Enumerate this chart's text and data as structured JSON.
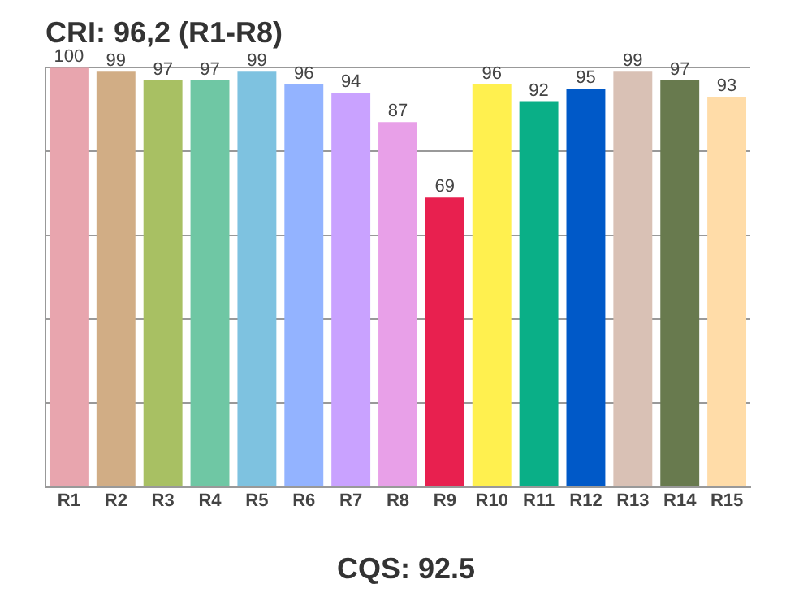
{
  "chart_data": {
    "type": "bar",
    "title": "CRI: 96,2 (R1-R8)",
    "categories": [
      "R1",
      "R2",
      "R3",
      "R4",
      "R5",
      "R6",
      "R7",
      "R8",
      "R9",
      "R10",
      "R11",
      "R12",
      "R13",
      "R14",
      "R15"
    ],
    "values": [
      100,
      99,
      97,
      97,
      99,
      96,
      94,
      87,
      69,
      96,
      92,
      95,
      99,
      97,
      93
    ],
    "colors": [
      "#e8a5ae",
      "#d1ad85",
      "#a8c063",
      "#6fc7a4",
      "#7ec2e0",
      "#93b3ff",
      "#c9a2ff",
      "#e8a0e8",
      "#e8204f",
      "#fff04f",
      "#0aaf87",
      "#0059c8",
      "#d9c1b5",
      "#687a4e",
      "#ffdca8"
    ],
    "ylim": [
      0,
      100
    ],
    "yticks": [
      {
        "value": 0,
        "label": null
      },
      {
        "value": 20,
        "label": null
      },
      {
        "value": 40,
        "label": null
      },
      {
        "value": 60,
        "label": null
      },
      {
        "value": 80,
        "label": null
      },
      {
        "value": 100,
        "label": null
      }
    ],
    "tick_labels": "x",
    "grid": "y",
    "data_labels": true,
    "legend": false,
    "annotations": [
      "CQS: 92.5"
    ]
  }
}
